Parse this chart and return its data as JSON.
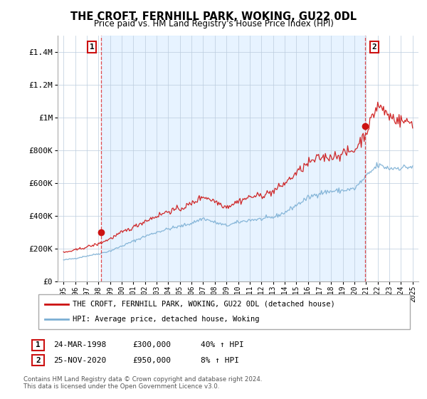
{
  "title": "THE CROFT, FERNHILL PARK, WOKING, GU22 0DL",
  "subtitle": "Price paid vs. HM Land Registry's House Price Index (HPI)",
  "legend_line1": "THE CROFT, FERNHILL PARK, WOKING, GU22 0DL (detached house)",
  "legend_line2": "HPI: Average price, detached house, Woking",
  "annotation1": {
    "num": "1",
    "date": "24-MAR-1998",
    "price": "£300,000",
    "hpi": "40% ↑ HPI"
  },
  "annotation2": {
    "num": "2",
    "date": "25-NOV-2020",
    "price": "£950,000",
    "hpi": "8% ↑ HPI"
  },
  "footer": "Contains HM Land Registry data © Crown copyright and database right 2024.\nThis data is licensed under the Open Government Licence v3.0.",
  "hpi_color": "#7bafd4",
  "sale_color": "#cc1111",
  "bg_fill_color": "#ddeeff",
  "marker1_x": 1998.23,
  "marker1_y": 300000,
  "marker2_x": 2020.9,
  "marker2_y": 950000,
  "vline1_x": 1998.23,
  "vline2_x": 2020.9,
  "ylim": [
    0,
    1500000
  ],
  "xlim": [
    1994.5,
    2025.5
  ],
  "yticks": [
    0,
    200000,
    400000,
    600000,
    800000,
    1000000,
    1200000,
    1400000
  ],
  "xticks": [
    1995,
    1996,
    1997,
    1998,
    1999,
    2000,
    2001,
    2002,
    2003,
    2004,
    2005,
    2006,
    2007,
    2008,
    2009,
    2010,
    2011,
    2012,
    2013,
    2014,
    2015,
    2016,
    2017,
    2018,
    2019,
    2020,
    2021,
    2022,
    2023,
    2024,
    2025
  ],
  "hpi_base": [
    130000,
    140000,
    155000,
    168000,
    185000,
    215000,
    245000,
    275000,
    300000,
    320000,
    335000,
    355000,
    385000,
    360000,
    340000,
    360000,
    375000,
    380000,
    390000,
    420000,
    465000,
    510000,
    540000,
    550000,
    555000,
    565000,
    640000,
    710000,
    690000,
    695000,
    700000
  ],
  "sale_base": [
    175000,
    190000,
    210000,
    228000,
    260000,
    298000,
    330000,
    368000,
    398000,
    428000,
    442000,
    474000,
    520000,
    490000,
    455000,
    488000,
    515000,
    525000,
    548000,
    598000,
    660000,
    720000,
    755000,
    762000,
    780000,
    800000,
    910000,
    1080000,
    1010000,
    980000,
    970000
  ]
}
